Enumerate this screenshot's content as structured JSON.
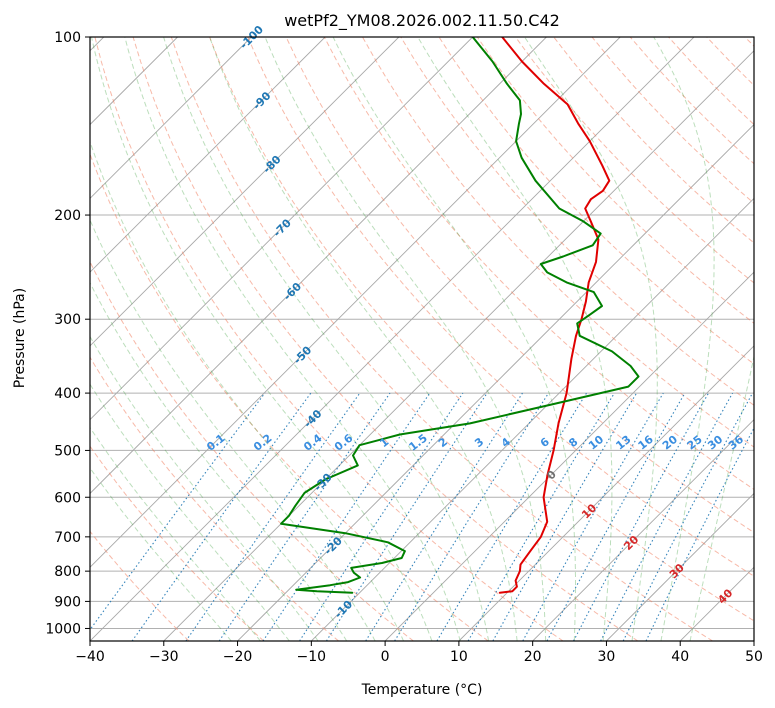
{
  "chart_data": {
    "type": "line",
    "title": "wetPf2_YM08.2026.002.11.50.C42",
    "xlabel": "Temperature (°C)",
    "ylabel": "Pressure (hPa)",
    "xlim": [
      -40,
      50
    ],
    "ylim": [
      1050,
      100
    ],
    "y_scale": "log",
    "x_ticks": [
      -40,
      -30,
      -20,
      -10,
      0,
      10,
      20,
      30,
      40,
      50
    ],
    "y_ticks": [
      100,
      200,
      300,
      400,
      500,
      600,
      700,
      800,
      900,
      1000
    ],
    "x_tick_labels": [
      "−40",
      "−30",
      "−20",
      "−10",
      "0",
      "10",
      "20",
      "30",
      "40",
      "50"
    ],
    "y_tick_labels": [
      "100",
      "200",
      "300",
      "400",
      "500",
      "600",
      "700",
      "800",
      "900",
      "1000"
    ],
    "grid": true,
    "skew": 45,
    "colors": {
      "temperature": "#e00000",
      "dewpoint": "#008000",
      "dry_adiabat": "#f08060",
      "moist_adiabat": "#40a040",
      "mixing_ratio": "#1f77b4",
      "isotherm": "#999999",
      "blue_label": "#1f77b4",
      "red_label": "#d62728",
      "gray_label": "#707070"
    },
    "series": [
      {
        "key": "temperature",
        "points": [
          [
            870,
            9
          ],
          [
            865,
            10.5
          ],
          [
            850,
            10.5
          ],
          [
            830,
            9.5
          ],
          [
            800,
            8.8
          ],
          [
            780,
            8
          ],
          [
            740,
            7.5
          ],
          [
            700,
            7
          ],
          [
            660,
            5.8
          ],
          [
            600,
            2
          ],
          [
            550,
            -0.5
          ],
          [
            500,
            -3
          ],
          [
            450,
            -6
          ],
          [
            400,
            -9
          ],
          [
            350,
            -13
          ],
          [
            320,
            -15.5
          ],
          [
            300,
            -17
          ],
          [
            280,
            -18.8
          ],
          [
            260,
            -21
          ],
          [
            240,
            -22.8
          ],
          [
            220,
            -25.5
          ],
          [
            205,
            -29
          ],
          [
            195,
            -31.5
          ],
          [
            188,
            -32
          ],
          [
            182,
            -31.5
          ],
          [
            175,
            -32
          ],
          [
            165,
            -35
          ],
          [
            150,
            -40
          ],
          [
            140,
            -44
          ],
          [
            130,
            -48
          ],
          [
            120,
            -54
          ],
          [
            110,
            -60
          ],
          [
            100,
            -66
          ]
        ]
      },
      {
        "key": "dewpoint",
        "points": [
          [
            870,
            -11
          ],
          [
            865,
            -16
          ],
          [
            860,
            -19
          ],
          [
            845,
            -15
          ],
          [
            835,
            -13
          ],
          [
            820,
            -12
          ],
          [
            805,
            -13.5
          ],
          [
            790,
            -14.5
          ],
          [
            775,
            -11
          ],
          [
            760,
            -9
          ],
          [
            740,
            -9.5
          ],
          [
            715,
            -13
          ],
          [
            690,
            -20
          ],
          [
            665,
            -30
          ],
          [
            645,
            -30
          ],
          [
            620,
            -30.5
          ],
          [
            590,
            -31
          ],
          [
            560,
            -30
          ],
          [
            530,
            -27.5
          ],
          [
            510,
            -29.5
          ],
          [
            490,
            -30
          ],
          [
            470,
            -26
          ],
          [
            450,
            -18
          ],
          [
            420,
            -10
          ],
          [
            390,
            -1.5
          ],
          [
            375,
            -1.5
          ],
          [
            360,
            -4
          ],
          [
            340,
            -8.5
          ],
          [
            320,
            -15
          ],
          [
            305,
            -17
          ],
          [
            295,
            -16.5
          ],
          [
            285,
            -16
          ],
          [
            270,
            -19
          ],
          [
            260,
            -24
          ],
          [
            250,
            -28
          ],
          [
            242,
            -30
          ],
          [
            235,
            -28
          ],
          [
            225,
            -25.5
          ],
          [
            215,
            -26
          ],
          [
            205,
            -30
          ],
          [
            195,
            -35
          ],
          [
            175,
            -42
          ],
          [
            160,
            -47
          ],
          [
            150,
            -50
          ],
          [
            140,
            -52
          ],
          [
            135,
            -53
          ],
          [
            128,
            -55
          ],
          [
            120,
            -59
          ],
          [
            110,
            -64
          ],
          [
            100,
            -70
          ]
        ]
      }
    ],
    "mixing_ratio_labels": [
      "0.1",
      "0.2",
      "0.4",
      "0.6",
      "1",
      "1.5",
      "2",
      "3",
      "4",
      "6",
      "8",
      "10",
      "13",
      "16",
      "20",
      "25",
      "30",
      "36"
    ],
    "isotherm_labels": [
      "-100",
      "-90",
      "-80",
      "-70",
      "-60",
      "-50",
      "-40",
      "-30",
      "-20",
      "-10",
      "0",
      "10",
      "20",
      "30",
      "40"
    ]
  }
}
